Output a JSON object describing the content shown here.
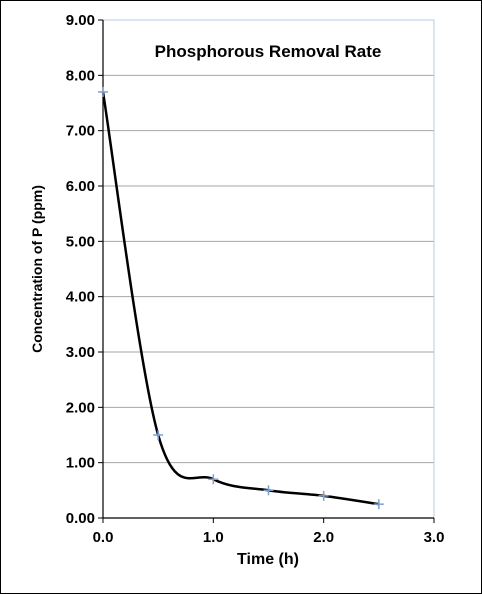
{
  "chart_data": {
    "type": "line",
    "title": "Phosphorous Removal Rate",
    "xlabel": "Time (h)",
    "ylabel": "Concentration of P (ppm)",
    "xlim": [
      0,
      3
    ],
    "ylim": [
      0,
      9
    ],
    "x_ticks": [
      "0.0",
      "1.0",
      "2.0",
      "3.0"
    ],
    "y_ticks": [
      "0.00",
      "1.00",
      "2.00",
      "3.00",
      "4.00",
      "5.00",
      "6.00",
      "7.00",
      "8.00",
      "9.00"
    ],
    "grid": "horizontal",
    "series": [
      {
        "x": [
          0.0,
          0.5,
          1.0,
          1.5,
          2.0,
          2.5
        ],
        "values": [
          7.7,
          1.5,
          0.7,
          0.5,
          0.4,
          0.25
        ]
      }
    ],
    "colors": {
      "line": "#000000",
      "marker": "#7f9fcf",
      "grid": "#a6a6a6",
      "plot_border": "#b8cce4"
    }
  }
}
